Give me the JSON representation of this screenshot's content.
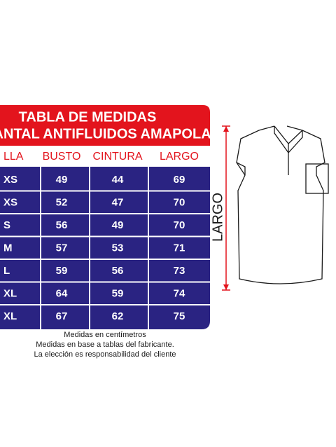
{
  "header": {
    "title": "TABLA DE MEDIDAS",
    "subtitle": "LANTAL ANTIFLUIDOS AMAPOLA"
  },
  "table": {
    "columns": [
      "LLA",
      "BUSTO",
      "CINTURA",
      "LARGO"
    ],
    "rows": [
      [
        "XS",
        49,
        44,
        69
      ],
      [
        "XS",
        52,
        47,
        70
      ],
      [
        "S",
        56,
        49,
        70
      ],
      [
        "M",
        57,
        53,
        71
      ],
      [
        "L",
        59,
        56,
        73
      ],
      [
        "XL",
        64,
        59,
        74
      ],
      [
        "XL",
        67,
        62,
        75
      ]
    ]
  },
  "notes": [
    "Medidas en centímetros",
    "Medidas en base a tablas del fabricante.",
    "La elección es responsabilidad del cliente"
  ],
  "diagram": {
    "label": "LARGO"
  }
}
